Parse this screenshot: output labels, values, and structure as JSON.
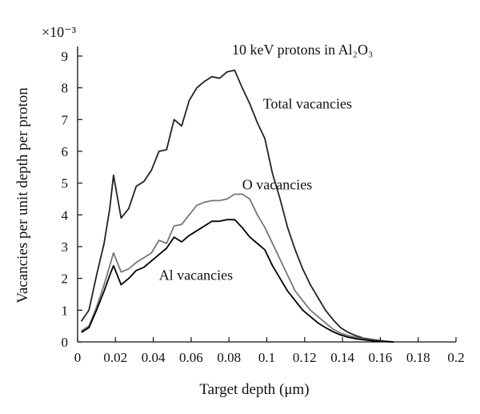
{
  "chart_data": {
    "type": "line",
    "title": "10 keV protons in Al₂O₃",
    "xlabel": "Target depth (μm)",
    "ylabel": "Vacancies per unit depth per proton",
    "y_multiplier": "×10⁻³",
    "xlim": [
      0,
      0.2
    ],
    "ylim": [
      0,
      9
    ],
    "x_ticks": [
      "0",
      "0.02",
      "0.04",
      "0.06",
      "0.08",
      "0.1",
      "0.12",
      "0.14",
      "0.16",
      "0.18",
      "0.2"
    ],
    "y_ticks": [
      "0",
      "1",
      "2",
      "3",
      "4",
      "5",
      "6",
      "7",
      "8",
      "9"
    ],
    "grid": false,
    "series": [
      {
        "name": "Total vacancies",
        "color": "#222222",
        "x": [
          0.002,
          0.006,
          0.01,
          0.014,
          0.017,
          0.019,
          0.023,
          0.027,
          0.031,
          0.035,
          0.039,
          0.043,
          0.047,
          0.051,
          0.055,
          0.059,
          0.063,
          0.067,
          0.071,
          0.075,
          0.079,
          0.083,
          0.087,
          0.091,
          0.095,
          0.099,
          0.103,
          0.107,
          0.111,
          0.115,
          0.119,
          0.123,
          0.127,
          0.131,
          0.135,
          0.139,
          0.143,
          0.147,
          0.151,
          0.155,
          0.159,
          0.163,
          0.167
        ],
        "y": [
          0.65,
          1.0,
          2.1,
          3.1,
          4.2,
          5.25,
          3.9,
          4.2,
          4.9,
          5.05,
          5.4,
          6.0,
          6.05,
          7.0,
          6.8,
          7.6,
          8.0,
          8.2,
          8.35,
          8.3,
          8.5,
          8.55,
          8.0,
          7.5,
          6.9,
          6.4,
          5.3,
          4.5,
          3.6,
          2.9,
          2.3,
          1.8,
          1.4,
          1.0,
          0.7,
          0.45,
          0.3,
          0.2,
          0.12,
          0.08,
          0.05,
          0.02,
          0.0
        ]
      },
      {
        "name": "O vacancies",
        "color": "#777777",
        "x": [
          0.002,
          0.006,
          0.01,
          0.014,
          0.017,
          0.019,
          0.023,
          0.027,
          0.031,
          0.035,
          0.039,
          0.043,
          0.047,
          0.051,
          0.055,
          0.059,
          0.063,
          0.067,
          0.071,
          0.075,
          0.079,
          0.083,
          0.087,
          0.091,
          0.095,
          0.099,
          0.103,
          0.107,
          0.111,
          0.115,
          0.119,
          0.123,
          0.127,
          0.131,
          0.135,
          0.139,
          0.143,
          0.147,
          0.151,
          0.155,
          0.159,
          0.163,
          0.167
        ],
        "y": [
          0.35,
          0.5,
          1.1,
          1.8,
          2.4,
          2.8,
          2.2,
          2.3,
          2.5,
          2.65,
          2.8,
          3.2,
          3.1,
          3.65,
          3.7,
          4.0,
          4.3,
          4.4,
          4.45,
          4.45,
          4.5,
          4.65,
          4.65,
          4.5,
          4.0,
          3.6,
          3.1,
          2.6,
          2.1,
          1.6,
          1.3,
          1.0,
          0.8,
          0.6,
          0.4,
          0.28,
          0.2,
          0.15,
          0.1,
          0.06,
          0.03,
          0.01,
          0.0
        ]
      },
      {
        "name": "Al vacancies",
        "color": "#000000",
        "x": [
          0.002,
          0.006,
          0.01,
          0.014,
          0.017,
          0.019,
          0.023,
          0.027,
          0.031,
          0.035,
          0.039,
          0.043,
          0.047,
          0.051,
          0.055,
          0.059,
          0.063,
          0.067,
          0.071,
          0.075,
          0.079,
          0.083,
          0.087,
          0.091,
          0.095,
          0.099,
          0.103,
          0.107,
          0.111,
          0.115,
          0.119,
          0.123,
          0.127,
          0.131,
          0.135,
          0.139,
          0.143,
          0.147,
          0.151,
          0.155,
          0.159,
          0.163,
          0.167
        ],
        "y": [
          0.3,
          0.45,
          1.0,
          1.6,
          2.1,
          2.4,
          1.8,
          2.0,
          2.25,
          2.35,
          2.55,
          2.75,
          2.95,
          3.3,
          3.15,
          3.35,
          3.5,
          3.65,
          3.8,
          3.8,
          3.85,
          3.85,
          3.6,
          3.3,
          3.1,
          2.9,
          2.4,
          2.0,
          1.6,
          1.3,
          1.0,
          0.8,
          0.6,
          0.45,
          0.32,
          0.22,
          0.15,
          0.1,
          0.07,
          0.04,
          0.02,
          0.01,
          0.0
        ]
      }
    ],
    "annotations": [
      {
        "text": "Total vacancies",
        "x": 0.098,
        "y": 7.35
      },
      {
        "text": "O vacancies",
        "x": 0.087,
        "y": 4.8
      },
      {
        "text": "Al vacancies",
        "x": 0.043,
        "y": 1.95
      }
    ]
  }
}
